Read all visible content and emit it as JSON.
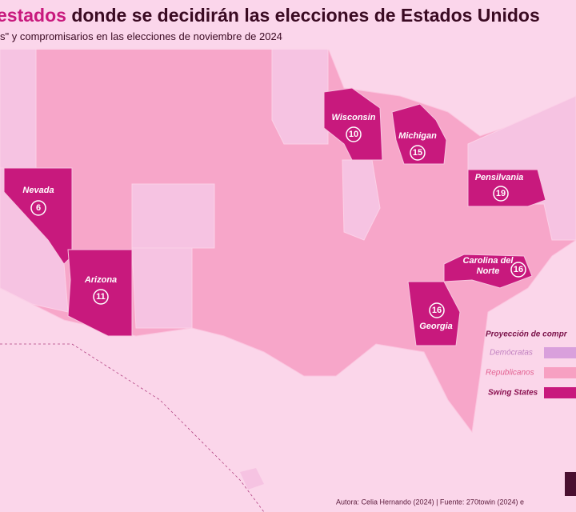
{
  "header": {
    "title_highlight": "estados",
    "title": "donde se decidirán las elecciones de Estados Unidos",
    "subtitle": "s\" y compromisarios en las elecciones de noviembre de 2024"
  },
  "states": [
    {
      "name": "Nevada",
      "votes": 6
    },
    {
      "name": "Arizona",
      "votes": 11
    },
    {
      "name": "Wisconsin",
      "votes": 10
    },
    {
      "name": "Michigan",
      "votes": 15
    },
    {
      "name": "Pensilvania",
      "votes": 19
    },
    {
      "name": "Carolina del Norte",
      "votes": 16
    },
    {
      "name": "Georgia",
      "votes": 16
    }
  ],
  "legend": {
    "title": "Proyección de compr",
    "items": [
      "Demócratas",
      "Republicanos",
      "Swing States"
    ]
  },
  "footer": {
    "source": "Autora: Celia Hernando (2024) | Fuente: 270towin (2024) e"
  }
}
